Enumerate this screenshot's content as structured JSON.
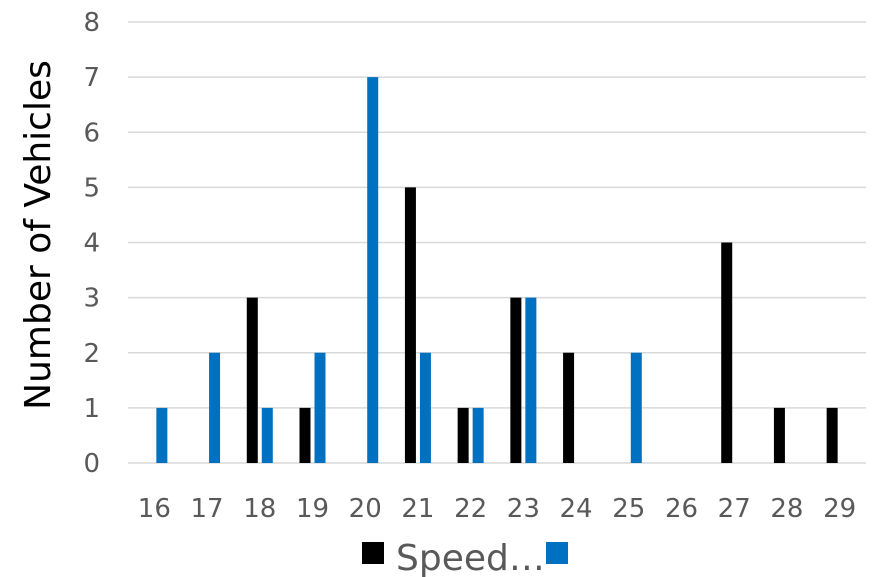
{
  "chart_data": {
    "type": "bar",
    "title": "",
    "xlabel": "",
    "ylabel": "Number of Vehicles",
    "categories": [
      "16",
      "17",
      "18",
      "19",
      "20",
      "21",
      "22",
      "23",
      "24",
      "25",
      "26",
      "27",
      "28",
      "29"
    ],
    "series": [
      {
        "name": "Speed…",
        "color": "#000000",
        "values": [
          0,
          0,
          3,
          1,
          0,
          5,
          1,
          3,
          2,
          0,
          0,
          4,
          1,
          1
        ]
      },
      {
        "name": "",
        "color": "#0070c0",
        "values": [
          1,
          2,
          1,
          2,
          7,
          2,
          1,
          3,
          0,
          2,
          0,
          0,
          0,
          0
        ]
      }
    ],
    "ylim": [
      0,
      8
    ],
    "yticks": [
      "0",
      "1",
      "2",
      "3",
      "4",
      "5",
      "6",
      "7",
      "8"
    ],
    "grid": true,
    "legend": "bottom"
  }
}
